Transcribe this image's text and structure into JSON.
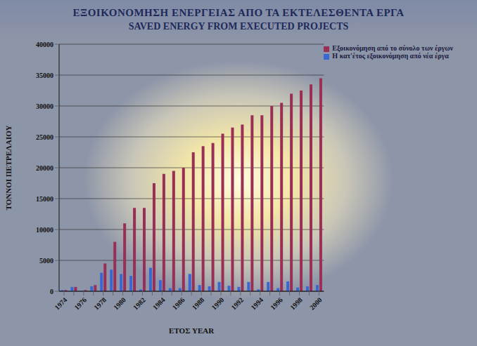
{
  "chart_data": {
    "type": "bar",
    "title": "ΕΞΟΙΚΟΝΟΜΗΣΗ ΕΝΕΡΓΕΙΑΣ ΑΠΟ ΤΑ ΕΚΤΕΛΕΣΘΕΝΤΑ ΕΡΓΑ",
    "subtitle": "SAVED ENERGY FROM EXECUTED PROJECTS",
    "x_label": "ΕΤΟΣ YEAR",
    "y_label": "ΤΟΝΝΟΙ ΠΕΤΡΕΛΑΙΟΥ",
    "categories": [
      "1974",
      null,
      "1976",
      null,
      "1978",
      null,
      "1980",
      null,
      "1982",
      null,
      "1984",
      null,
      "1986",
      null,
      "1988",
      null,
      "1990",
      null,
      "1992",
      null,
      "1994",
      null,
      "1996",
      null,
      "1998",
      null,
      "2000"
    ],
    "series": [
      {
        "name": "Η κατ'έτος εξοικονόμηση από νέα έργα",
        "color": "#3a66d0",
        "values": [
          200,
          700,
          100,
          800,
          3000,
          3500,
          2800,
          2500,
          300,
          3800,
          1800,
          500,
          500,
          2800,
          1000,
          800,
          1500,
          900,
          700,
          1500,
          300,
          1500,
          500,
          1600,
          600,
          800,
          1000
        ]
      },
      {
        "name": "Εξοικονόμηση από το σύνολο των έργων",
        "color": "#9a2f55",
        "values": [
          200,
          700,
          200,
          1000,
          4500,
          8000,
          11000,
          13500,
          13500,
          17500,
          19000,
          19500,
          20000,
          22500,
          23500,
          24000,
          25500,
          26500,
          27000,
          28500,
          28500,
          30000,
          30500,
          32000,
          32500,
          33500,
          34500
        ]
      }
    ],
    "ylim": [
      0,
      40000
    ],
    "yticks": [
      0,
      5000,
      10000,
      15000,
      20000,
      25000,
      30000,
      35000,
      40000
    ],
    "grid": true,
    "legend": "top-right"
  }
}
